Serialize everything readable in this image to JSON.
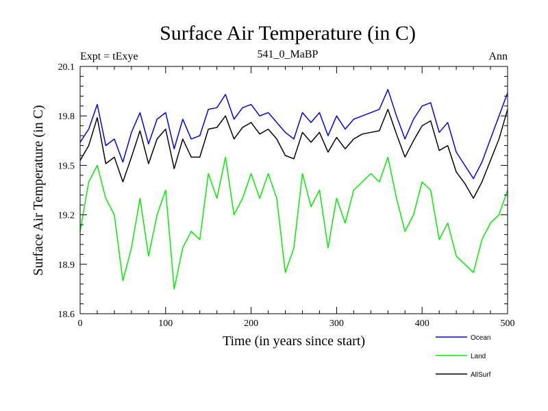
{
  "header": {
    "left_label": "Expt = tExye",
    "center_label": "541_0_MaBP",
    "right_label": "Ann"
  },
  "chart_data": {
    "type": "line",
    "title": "Surface Air Temperature (in C)",
    "xlabel": "Time (in years since start)",
    "ylabel": "Surface Air Temperature (in C)",
    "xlim": [
      0,
      500
    ],
    "ylim": [
      18.6,
      20.1
    ],
    "x_ticks": [
      0,
      100,
      200,
      300,
      400,
      500
    ],
    "x_tick_labels": [
      "0",
      "100",
      "200",
      "300",
      "400",
      "500"
    ],
    "y_ticks": [
      18.6,
      18.9,
      19.2,
      19.5,
      19.8,
      20.1
    ],
    "y_tick_labels": [
      "18.6",
      "18.9",
      "19.2",
      "19.5",
      "19.8",
      "20.1"
    ],
    "grid": false,
    "legend_position": "bottom-right",
    "x": [
      0,
      10,
      20,
      30,
      40,
      50,
      60,
      70,
      80,
      90,
      100,
      110,
      120,
      130,
      140,
      150,
      160,
      170,
      180,
      190,
      200,
      210,
      220,
      230,
      240,
      250,
      260,
      270,
      280,
      290,
      300,
      310,
      320,
      330,
      340,
      350,
      360,
      370,
      380,
      390,
      400,
      410,
      420,
      430,
      440,
      450,
      460,
      470,
      480,
      490,
      500
    ],
    "series": [
      {
        "name": "Ocean",
        "color": "#0000ee",
        "values": [
          19.64,
          19.72,
          19.87,
          19.62,
          19.66,
          19.52,
          19.7,
          19.82,
          19.63,
          19.78,
          19.82,
          19.6,
          19.78,
          19.66,
          19.68,
          19.84,
          19.85,
          19.93,
          19.78,
          19.85,
          19.87,
          19.8,
          19.82,
          19.76,
          19.7,
          19.66,
          19.82,
          19.76,
          19.82,
          19.68,
          19.8,
          19.72,
          19.78,
          19.8,
          19.82,
          19.84,
          19.96,
          19.8,
          19.66,
          19.78,
          19.86,
          19.88,
          19.7,
          19.76,
          19.58,
          19.5,
          19.42,
          19.52,
          19.66,
          19.8,
          19.94
        ]
      },
      {
        "name": "Land",
        "color": "#00ee00",
        "values": [
          19.1,
          19.4,
          19.5,
          19.3,
          19.2,
          18.8,
          19.0,
          19.3,
          18.95,
          19.2,
          19.35,
          18.75,
          19.0,
          19.1,
          19.05,
          19.45,
          19.3,
          19.55,
          19.2,
          19.3,
          19.45,
          19.3,
          19.45,
          19.3,
          18.85,
          19.0,
          19.45,
          19.25,
          19.35,
          19.0,
          19.3,
          19.15,
          19.35,
          19.4,
          19.45,
          19.4,
          19.55,
          19.3,
          19.1,
          19.2,
          19.4,
          19.35,
          19.05,
          19.15,
          18.95,
          18.9,
          18.85,
          19.05,
          19.15,
          19.2,
          19.35
        ]
      },
      {
        "name": "AllSurf",
        "color": "#000000",
        "values": [
          19.53,
          19.62,
          19.79,
          19.51,
          19.55,
          19.4,
          19.55,
          19.71,
          19.51,
          19.66,
          19.72,
          19.48,
          19.66,
          19.55,
          19.55,
          19.72,
          19.73,
          19.8,
          19.66,
          19.73,
          19.76,
          19.69,
          19.72,
          19.66,
          19.56,
          19.54,
          19.7,
          19.64,
          19.7,
          19.58,
          19.67,
          19.6,
          19.66,
          19.69,
          19.7,
          19.71,
          19.84,
          19.69,
          19.55,
          19.65,
          19.74,
          19.77,
          19.59,
          19.62,
          19.46,
          19.39,
          19.3,
          19.4,
          19.53,
          19.66,
          19.84
        ]
      }
    ]
  }
}
